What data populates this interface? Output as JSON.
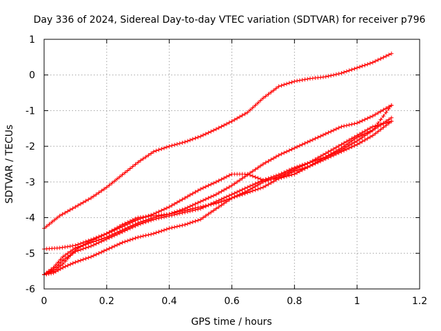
{
  "chart_data": {
    "type": "scatter",
    "title": "Day 336 of 2024, Sidereal Day-to-day VTEC variation (SDTVAR) for receiver p796",
    "xlabel": "GPS time / hours",
    "ylabel": "SDTVAR / TECUs",
    "xlim": [
      0,
      1.2
    ],
    "ylim": [
      -6,
      1
    ],
    "xticks": [
      0,
      0.2,
      0.4,
      0.6,
      0.8,
      1,
      1.2
    ],
    "xtick_labels": [
      "0",
      "0.2",
      "0.4",
      "0.6",
      "0.8",
      "1",
      "1.2"
    ],
    "yticks": [
      -6,
      -5,
      -4,
      -3,
      -2,
      -1,
      0,
      1
    ],
    "ytick_labels": [
      "-6",
      "-5",
      "-4",
      "-3",
      "-2",
      "-1",
      "0",
      "1"
    ],
    "grid": true,
    "marker": "plus",
    "color": "#ff0000",
    "series": [
      {
        "x": [
          0,
          0.05,
          0.1,
          0.15,
          0.2,
          0.25,
          0.3,
          0.35,
          0.4,
          0.45,
          0.5,
          0.55,
          0.6,
          0.65,
          0.7,
          0.75,
          0.8,
          0.85,
          0.9,
          0.95,
          1.0,
          1.05,
          1.11
        ],
        "y": [
          -4.3,
          -3.95,
          -3.7,
          -3.45,
          -3.15,
          -2.8,
          -2.45,
          -2.15,
          -2.0,
          -1.88,
          -1.72,
          -1.52,
          -1.3,
          -1.05,
          -0.65,
          -0.32,
          -0.18,
          -0.1,
          -0.05,
          0.05,
          0.2,
          0.35,
          0.6
        ]
      },
      {
        "x": [
          0,
          0.05,
          0.1,
          0.15,
          0.2,
          0.25,
          0.3,
          0.35,
          0.4,
          0.45,
          0.5,
          0.55,
          0.6,
          0.65,
          0.7,
          0.75,
          0.8,
          0.85,
          0.9,
          0.95,
          1.0,
          1.05,
          1.11
        ],
        "y": [
          -4.88,
          -4.85,
          -4.78,
          -4.62,
          -4.45,
          -4.25,
          -4.05,
          -3.9,
          -3.7,
          -3.45,
          -3.2,
          -3.0,
          -2.78,
          -2.78,
          -2.95,
          -2.9,
          -2.78,
          -2.55,
          -2.3,
          -2.05,
          -1.75,
          -1.55,
          -1.2
        ]
      },
      {
        "x": [
          0,
          0.03,
          0.06,
          0.1,
          0.15,
          0.2,
          0.25,
          0.3,
          0.35,
          0.4,
          0.45,
          0.5,
          0.55,
          0.6,
          0.65,
          0.7,
          0.75,
          0.8,
          0.85,
          0.9,
          0.95,
          1.0,
          1.05,
          1.11
        ],
        "y": [
          -5.6,
          -5.4,
          -5.1,
          -4.85,
          -4.7,
          -4.55,
          -4.35,
          -4.15,
          -4.0,
          -3.9,
          -3.75,
          -3.55,
          -3.35,
          -3.1,
          -2.8,
          -2.5,
          -2.25,
          -2.05,
          -1.85,
          -1.65,
          -1.45,
          -1.35,
          -1.15,
          -0.85
        ]
      },
      {
        "x": [
          0,
          0.03,
          0.06,
          0.1,
          0.15,
          0.2,
          0.25,
          0.3,
          0.35,
          0.4,
          0.45,
          0.5,
          0.55,
          0.6,
          0.65,
          0.7,
          0.75,
          0.8,
          0.85,
          0.9,
          0.95,
          1.0,
          1.05,
          1.11
        ],
        "y": [
          -5.6,
          -5.5,
          -5.3,
          -4.9,
          -4.65,
          -4.45,
          -4.2,
          -4.0,
          -3.95,
          -3.9,
          -3.8,
          -3.7,
          -3.6,
          -3.45,
          -3.25,
          -3.0,
          -2.85,
          -2.65,
          -2.45,
          -2.2,
          -1.95,
          -1.7,
          -1.45,
          -1.3
        ]
      },
      {
        "x": [
          0,
          0.03,
          0.06,
          0.1,
          0.15,
          0.2,
          0.25,
          0.3,
          0.35,
          0.4,
          0.45,
          0.5,
          0.55,
          0.6,
          0.65,
          0.7,
          0.75,
          0.8,
          0.85,
          0.9,
          0.95,
          1.0,
          1.05,
          1.11
        ],
        "y": [
          -5.6,
          -5.55,
          -5.4,
          -5.25,
          -5.1,
          -4.9,
          -4.7,
          -4.55,
          -4.45,
          -4.3,
          -4.2,
          -4.05,
          -3.75,
          -3.45,
          -3.3,
          -3.15,
          -2.9,
          -2.7,
          -2.55,
          -2.35,
          -2.15,
          -1.95,
          -1.7,
          -1.3
        ]
      },
      {
        "x": [
          0,
          0.03,
          0.06,
          0.1,
          0.15,
          0.2,
          0.25,
          0.3,
          0.35,
          0.4,
          0.45,
          0.5,
          0.55,
          0.6,
          0.65,
          0.7,
          0.75,
          0.8,
          0.85,
          0.9,
          0.95,
          1.0,
          1.05,
          1.11
        ],
        "y": [
          -5.6,
          -5.45,
          -5.2,
          -4.95,
          -4.8,
          -4.6,
          -4.4,
          -4.2,
          -4.05,
          -3.95,
          -3.85,
          -3.75,
          -3.55,
          -3.35,
          -3.15,
          -2.95,
          -2.8,
          -2.6,
          -2.45,
          -2.3,
          -2.1,
          -1.85,
          -1.55,
          -0.85
        ]
      }
    ]
  }
}
